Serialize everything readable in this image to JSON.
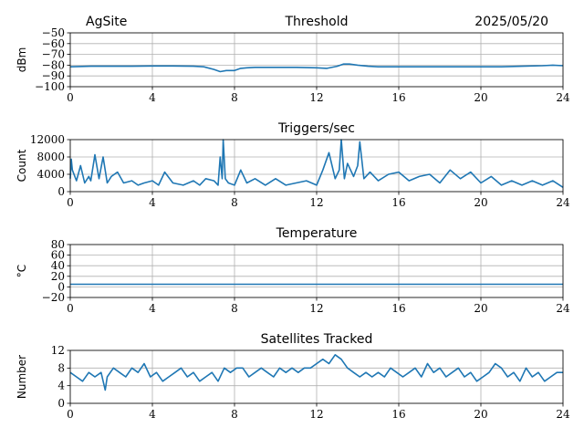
{
  "header": {
    "site": "AgSite",
    "date": "2025/05/20"
  },
  "style": {
    "line_color": "#1f77b4",
    "grid_color": "#b0b0b0"
  },
  "chart_data": [
    {
      "type": "line",
      "title": "Threshold",
      "ylabel": "dBm",
      "xlabel": "",
      "xlim": [
        0,
        24
      ],
      "ylim": [
        -100,
        -50
      ],
      "xticks": [
        "0",
        "4",
        "8",
        "12",
        "16",
        "20",
        "24"
      ],
      "yticks": [
        "−100",
        "−90",
        "−80",
        "−70",
        "−60",
        "−50"
      ],
      "grid": true,
      "series": [
        {
          "x": [
            0,
            1,
            2,
            3,
            4,
            5,
            6,
            6.5,
            7,
            7.3,
            7.6,
            8,
            8.3,
            8.6,
            9,
            10,
            11,
            12,
            12.5,
            13,
            13.3,
            13.6,
            14,
            14.5,
            15,
            16,
            17,
            18,
            19,
            20,
            21,
            22,
            23,
            23.5,
            24
          ],
          "y": [
            -81.5,
            -81,
            -81,
            -81,
            -80.8,
            -80.8,
            -81,
            -81.5,
            -84,
            -86,
            -85,
            -85,
            -83,
            -82.5,
            -82,
            -82,
            -82,
            -82.5,
            -83,
            -81,
            -79,
            -79,
            -80,
            -81,
            -81.5,
            -81.5,
            -81.5,
            -81.5,
            -81.5,
            -81.5,
            -81.5,
            -81,
            -80.5,
            -80,
            -80.5
          ]
        }
      ]
    },
    {
      "type": "line",
      "title": "Triggers/sec",
      "ylabel": "Count",
      "xlabel": "",
      "xlim": [
        0,
        24
      ],
      "ylim": [
        0,
        12000
      ],
      "xticks": [
        "0",
        "4",
        "8",
        "12",
        "16",
        "20",
        "24"
      ],
      "yticks": [
        "0",
        "4000",
        "8000",
        "12000"
      ],
      "grid": true,
      "series": [
        {
          "x": [
            0,
            0.05,
            0.1,
            0.3,
            0.5,
            0.7,
            0.9,
            1.0,
            1.2,
            1.4,
            1.6,
            1.8,
            2.0,
            2.3,
            2.6,
            3.0,
            3.3,
            3.6,
            4.0,
            4.3,
            4.6,
            5.0,
            5.5,
            6.0,
            6.3,
            6.6,
            7.0,
            7.2,
            7.3,
            7.4,
            7.45,
            7.55,
            7.7,
            8.0,
            8.3,
            8.6,
            9.0,
            9.5,
            10.0,
            10.5,
            11.0,
            11.5,
            12.0,
            12.3,
            12.6,
            12.9,
            13.1,
            13.2,
            13.35,
            13.5,
            13.8,
            14.0,
            14.1,
            14.3,
            14.6,
            15.0,
            15.5,
            16.0,
            16.5,
            17.0,
            17.5,
            18.0,
            18.5,
            19.0,
            19.5,
            20.0,
            20.5,
            21.0,
            21.5,
            22.0,
            22.5,
            23.0,
            23.5,
            24.0
          ],
          "y": [
            3000,
            7500,
            5000,
            2500,
            6000,
            2000,
            3500,
            2500,
            8500,
            3000,
            8000,
            2000,
            3500,
            4500,
            2000,
            2500,
            1500,
            2000,
            2500,
            1500,
            4500,
            2000,
            1500,
            2500,
            1500,
            3000,
            2500,
            1500,
            8000,
            3000,
            12000,
            3000,
            2000,
            1500,
            5000,
            2000,
            3000,
            1500,
            3000,
            1500,
            2000,
            2500,
            1500,
            5000,
            9000,
            3000,
            5000,
            12000,
            3000,
            6500,
            3500,
            6000,
            11500,
            3000,
            4500,
            2500,
            4000,
            4500,
            2500,
            3500,
            4000,
            2000,
            5000,
            3000,
            4500,
            2000,
            3500,
            1500,
            2500,
            1500,
            2500,
            1500,
            2500,
            1000
          ]
        }
      ]
    },
    {
      "type": "line",
      "title": "Temperature",
      "ylabel": "°C",
      "xlabel": "",
      "xlim": [
        0,
        24
      ],
      "ylim": [
        -20,
        80
      ],
      "xticks": [
        "0",
        "4",
        "8",
        "12",
        "16",
        "20",
        "24"
      ],
      "yticks": [
        "−20",
        "0",
        "20",
        "40",
        "60",
        "80"
      ],
      "grid": true,
      "series": [
        {
          "x": [
            0,
            24
          ],
          "y": [
            5,
            5
          ]
        }
      ]
    },
    {
      "type": "line",
      "title": "Satellites Tracked",
      "ylabel": "Number",
      "xlabel": "",
      "xlim": [
        0,
        24
      ],
      "ylim": [
        0,
        12
      ],
      "xticks": [
        "0",
        "4",
        "8",
        "12",
        "16",
        "20",
        "24"
      ],
      "yticks": [
        "0",
        "4",
        "8",
        "12"
      ],
      "grid": true,
      "series": [
        {
          "x": [
            0,
            0.3,
            0.6,
            0.9,
            1.2,
            1.5,
            1.7,
            1.8,
            2.1,
            2.4,
            2.7,
            3.0,
            3.3,
            3.6,
            3.9,
            4.2,
            4.5,
            4.8,
            5.1,
            5.4,
            5.7,
            6.0,
            6.3,
            6.6,
            6.9,
            7.2,
            7.5,
            7.8,
            8.1,
            8.4,
            8.7,
            9.0,
            9.3,
            9.6,
            9.9,
            10.2,
            10.5,
            10.8,
            11.1,
            11.4,
            11.7,
            12.0,
            12.3,
            12.6,
            12.9,
            13.2,
            13.5,
            13.8,
            14.1,
            14.4,
            14.7,
            15.0,
            15.3,
            15.6,
            15.9,
            16.2,
            16.5,
            16.8,
            17.1,
            17.4,
            17.7,
            18.0,
            18.3,
            18.6,
            18.9,
            19.2,
            19.5,
            19.8,
            20.1,
            20.4,
            20.7,
            21.0,
            21.3,
            21.6,
            21.9,
            22.2,
            22.5,
            22.8,
            23.1,
            23.4,
            23.7,
            24.0
          ],
          "y": [
            7,
            6,
            5,
            7,
            6,
            7,
            3,
            6,
            8,
            7,
            6,
            8,
            7,
            9,
            6,
            7,
            5,
            6,
            7,
            8,
            6,
            7,
            5,
            6,
            7,
            5,
            8,
            7,
            8,
            8,
            6,
            7,
            8,
            7,
            6,
            8,
            7,
            8,
            7,
            8,
            8,
            9,
            10,
            9,
            11,
            10,
            8,
            7,
            6,
            7,
            6,
            7,
            6,
            8,
            7,
            6,
            7,
            8,
            6,
            9,
            7,
            8,
            6,
            7,
            8,
            6,
            7,
            5,
            6,
            7,
            9,
            8,
            6,
            7,
            5,
            8,
            6,
            7,
            5,
            6,
            7,
            7
          ]
        }
      ]
    }
  ]
}
